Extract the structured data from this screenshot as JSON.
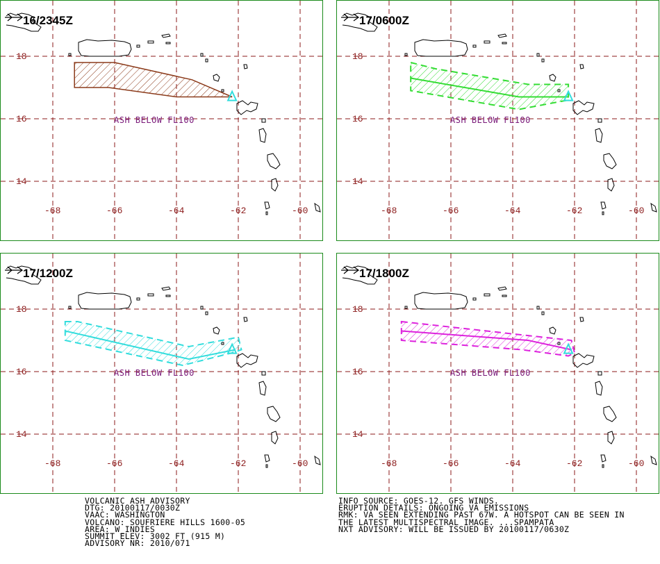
{
  "panels": [
    {
      "time": "16/2345Z",
      "ash_label": "ASH BELOW FL100",
      "color": "#8b3a1a",
      "poly": [
        [
          -67.3,
          17.8
        ],
        [
          -66,
          17.8
        ],
        [
          -63.5,
          17.25
        ],
        [
          -62.2,
          16.7
        ],
        [
          -63.3,
          16.7
        ],
        [
          -64,
          16.7
        ],
        [
          -66.2,
          17
        ],
        [
          -67.3,
          17
        ]
      ],
      "axis": null
    },
    {
      "time": "17/0600Z",
      "ash_label": "ASH BELOW FL100",
      "color": "#33dd33",
      "poly": [
        [
          -67.3,
          17.8
        ],
        [
          -66.5,
          17.6
        ],
        [
          -63.5,
          17.1
        ],
        [
          -62.2,
          17.1
        ],
        [
          -62.2,
          16.6
        ],
        [
          -63.8,
          16.3
        ],
        [
          -67.3,
          16.9
        ]
      ],
      "axis": [
        [
          -67.3,
          17.3
        ],
        [
          -63.8,
          16.7
        ],
        [
          -62.2,
          16.7
        ]
      ]
    },
    {
      "time": "17/1200Z",
      "ash_label": "ASH BELOW FL100",
      "color": "#33dddd",
      "poly": [
        [
          -67.6,
          17.6
        ],
        [
          -67.2,
          17.6
        ],
        [
          -63.6,
          16.8
        ],
        [
          -62,
          17.1
        ],
        [
          -61.9,
          16.7
        ],
        [
          -62.2,
          16.6
        ],
        [
          -63.8,
          16.2
        ],
        [
          -67.6,
          17.0
        ]
      ],
      "axis": [
        [
          -67.6,
          17.3
        ],
        [
          -63.6,
          16.4
        ],
        [
          -62.1,
          16.7
        ]
      ]
    },
    {
      "time": "17/1800Z",
      "ash_label": "ASH BELOW FL100",
      "color": "#dd22dd",
      "poly": [
        [
          -67.6,
          17.6
        ],
        [
          -62.1,
          17.0
        ],
        [
          -62,
          16.6
        ],
        [
          -62.2,
          16.5
        ],
        [
          -63.7,
          16.7
        ],
        [
          -67.6,
          17.0
        ]
      ],
      "axis": [
        [
          -67.6,
          17.3
        ],
        [
          -63.5,
          17.0
        ],
        [
          -62.1,
          16.7
        ]
      ]
    }
  ],
  "lat_labels": [
    "18",
    "16",
    "14"
  ],
  "lon_labels": [
    "-68",
    "-66",
    "-64",
    "-62",
    "-60"
  ],
  "vent_color": "#33dddd",
  "advisory_left": [
    "VOLCANIC ASH ADVISORY",
    "DTG: 20100117/0030Z",
    "VAAC: WASHINGTON",
    "VOLCANO: SOUFRIERE HILLS 1600-05",
    "AREA: W_INDIES",
    "SUMMIT ELEV: 3002 FT (915 M)",
    "ADVISORY NR: 2010/071"
  ],
  "advisory_right": [
    "INFO SOURCE: GOES-12. GFS WINDS.",
    "ERUPTION DETAILS: ONGOING VA EMISSIONS",
    "RMK: VA SEEN EXTENDING PAST 67W. A HOTSPOT CAN BE SEEN IN",
    "THE LATEST MULTISPECTRAL IMAGE. ...SPAMPATA",
    "NXT ADVISORY: WILL BE ISSUED BY 20100117/0630Z"
  ]
}
